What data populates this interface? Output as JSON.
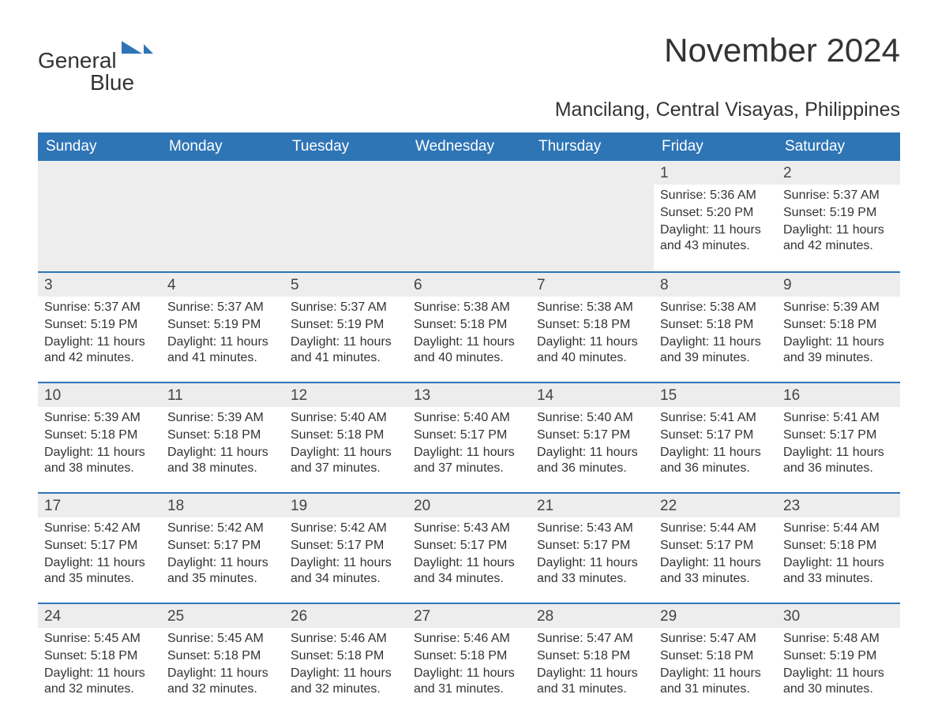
{
  "logo": {
    "word1": "General",
    "word2": "Blue"
  },
  "title": "November 2024",
  "subtitle": "Mancilang, Central Visayas, Philippines",
  "colors": {
    "header_bg": "#2e75b6",
    "header_fg": "#ffffff",
    "daynum_bg": "#ededed",
    "rule": "#2e75b6",
    "text": "#333333",
    "background": "#ffffff"
  },
  "font_family": "Arial, Helvetica, sans-serif",
  "title_fontsize": 42,
  "subtitle_fontsize": 25,
  "dow_fontsize": 19,
  "body_fontsize": 16,
  "days_of_week": [
    "Sunday",
    "Monday",
    "Tuesday",
    "Wednesday",
    "Thursday",
    "Friday",
    "Saturday"
  ],
  "weeks": [
    [
      null,
      null,
      null,
      null,
      null,
      {
        "day": 1,
        "sunrise": "5:36 AM",
        "sunset": "5:20 PM",
        "daylight": "11 hours and 43 minutes."
      },
      {
        "day": 2,
        "sunrise": "5:37 AM",
        "sunset": "5:19 PM",
        "daylight": "11 hours and 42 minutes."
      }
    ],
    [
      {
        "day": 3,
        "sunrise": "5:37 AM",
        "sunset": "5:19 PM",
        "daylight": "11 hours and 42 minutes."
      },
      {
        "day": 4,
        "sunrise": "5:37 AM",
        "sunset": "5:19 PM",
        "daylight": "11 hours and 41 minutes."
      },
      {
        "day": 5,
        "sunrise": "5:37 AM",
        "sunset": "5:19 PM",
        "daylight": "11 hours and 41 minutes."
      },
      {
        "day": 6,
        "sunrise": "5:38 AM",
        "sunset": "5:18 PM",
        "daylight": "11 hours and 40 minutes."
      },
      {
        "day": 7,
        "sunrise": "5:38 AM",
        "sunset": "5:18 PM",
        "daylight": "11 hours and 40 minutes."
      },
      {
        "day": 8,
        "sunrise": "5:38 AM",
        "sunset": "5:18 PM",
        "daylight": "11 hours and 39 minutes."
      },
      {
        "day": 9,
        "sunrise": "5:39 AM",
        "sunset": "5:18 PM",
        "daylight": "11 hours and 39 minutes."
      }
    ],
    [
      {
        "day": 10,
        "sunrise": "5:39 AM",
        "sunset": "5:18 PM",
        "daylight": "11 hours and 38 minutes."
      },
      {
        "day": 11,
        "sunrise": "5:39 AM",
        "sunset": "5:18 PM",
        "daylight": "11 hours and 38 minutes."
      },
      {
        "day": 12,
        "sunrise": "5:40 AM",
        "sunset": "5:18 PM",
        "daylight": "11 hours and 37 minutes."
      },
      {
        "day": 13,
        "sunrise": "5:40 AM",
        "sunset": "5:17 PM",
        "daylight": "11 hours and 37 minutes."
      },
      {
        "day": 14,
        "sunrise": "5:40 AM",
        "sunset": "5:17 PM",
        "daylight": "11 hours and 36 minutes."
      },
      {
        "day": 15,
        "sunrise": "5:41 AM",
        "sunset": "5:17 PM",
        "daylight": "11 hours and 36 minutes."
      },
      {
        "day": 16,
        "sunrise": "5:41 AM",
        "sunset": "5:17 PM",
        "daylight": "11 hours and 36 minutes."
      }
    ],
    [
      {
        "day": 17,
        "sunrise": "5:42 AM",
        "sunset": "5:17 PM",
        "daylight": "11 hours and 35 minutes."
      },
      {
        "day": 18,
        "sunrise": "5:42 AM",
        "sunset": "5:17 PM",
        "daylight": "11 hours and 35 minutes."
      },
      {
        "day": 19,
        "sunrise": "5:42 AM",
        "sunset": "5:17 PM",
        "daylight": "11 hours and 34 minutes."
      },
      {
        "day": 20,
        "sunrise": "5:43 AM",
        "sunset": "5:17 PM",
        "daylight": "11 hours and 34 minutes."
      },
      {
        "day": 21,
        "sunrise": "5:43 AM",
        "sunset": "5:17 PM",
        "daylight": "11 hours and 33 minutes."
      },
      {
        "day": 22,
        "sunrise": "5:44 AM",
        "sunset": "5:17 PM",
        "daylight": "11 hours and 33 minutes."
      },
      {
        "day": 23,
        "sunrise": "5:44 AM",
        "sunset": "5:18 PM",
        "daylight": "11 hours and 33 minutes."
      }
    ],
    [
      {
        "day": 24,
        "sunrise": "5:45 AM",
        "sunset": "5:18 PM",
        "daylight": "11 hours and 32 minutes."
      },
      {
        "day": 25,
        "sunrise": "5:45 AM",
        "sunset": "5:18 PM",
        "daylight": "11 hours and 32 minutes."
      },
      {
        "day": 26,
        "sunrise": "5:46 AM",
        "sunset": "5:18 PM",
        "daylight": "11 hours and 32 minutes."
      },
      {
        "day": 27,
        "sunrise": "5:46 AM",
        "sunset": "5:18 PM",
        "daylight": "11 hours and 31 minutes."
      },
      {
        "day": 28,
        "sunrise": "5:47 AM",
        "sunset": "5:18 PM",
        "daylight": "11 hours and 31 minutes."
      },
      {
        "day": 29,
        "sunrise": "5:47 AM",
        "sunset": "5:18 PM",
        "daylight": "11 hours and 31 minutes."
      },
      {
        "day": 30,
        "sunrise": "5:48 AM",
        "sunset": "5:19 PM",
        "daylight": "11 hours and 30 minutes."
      }
    ]
  ],
  "labels": {
    "sunrise_prefix": "Sunrise: ",
    "sunset_prefix": "Sunset: ",
    "daylight_prefix": "Daylight: "
  }
}
